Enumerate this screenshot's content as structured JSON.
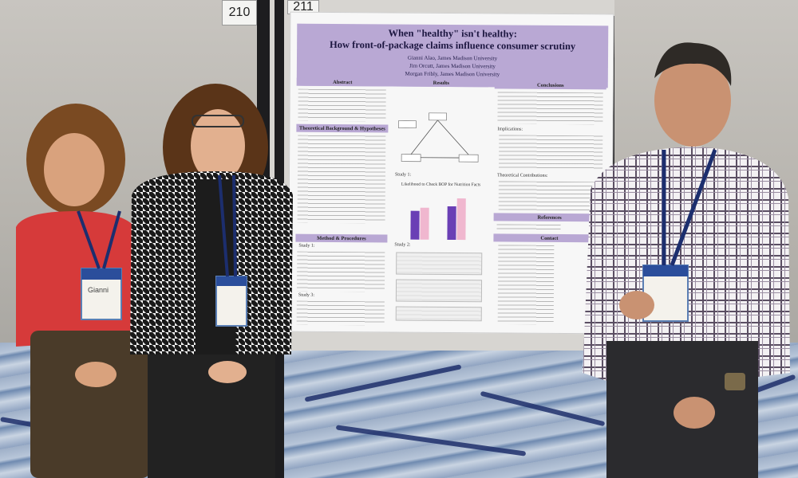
{
  "booth_numbers": {
    "left": "210",
    "right": "211"
  },
  "poster": {
    "title_line1": "When \"healthy\" isn't healthy:",
    "title_line2": "How front-of-package claims influence consumer scrutiny",
    "authors": [
      "Gianni Alao, James Madison University",
      "Jim Orcutt, James Madison University",
      "Morgan Fribly, James Madison University"
    ],
    "sections": {
      "abstract": "Abstract",
      "theory": "Theoretical Background & Hypotheses",
      "results": "Results",
      "study1": "Study 1:",
      "chart_title": "Likelihood to Check BOP for Nutrition Facts",
      "study2": "Study 2:",
      "conclusions": "Conclusions",
      "implications": "Implications:",
      "contributions": "Theoretical Contributions:",
      "references": "References",
      "contact": "Contact",
      "methods": "Method & Procedures",
      "study1_left": "Study 1:",
      "study3": "Study 3:"
    }
  },
  "badges": {
    "left_person": "Gianni",
    "right_person": ""
  },
  "colors": {
    "poster_header": "#b9a8d4",
    "bar_dark": "#6a3fb5",
    "bar_light": "#f0b7cf"
  }
}
